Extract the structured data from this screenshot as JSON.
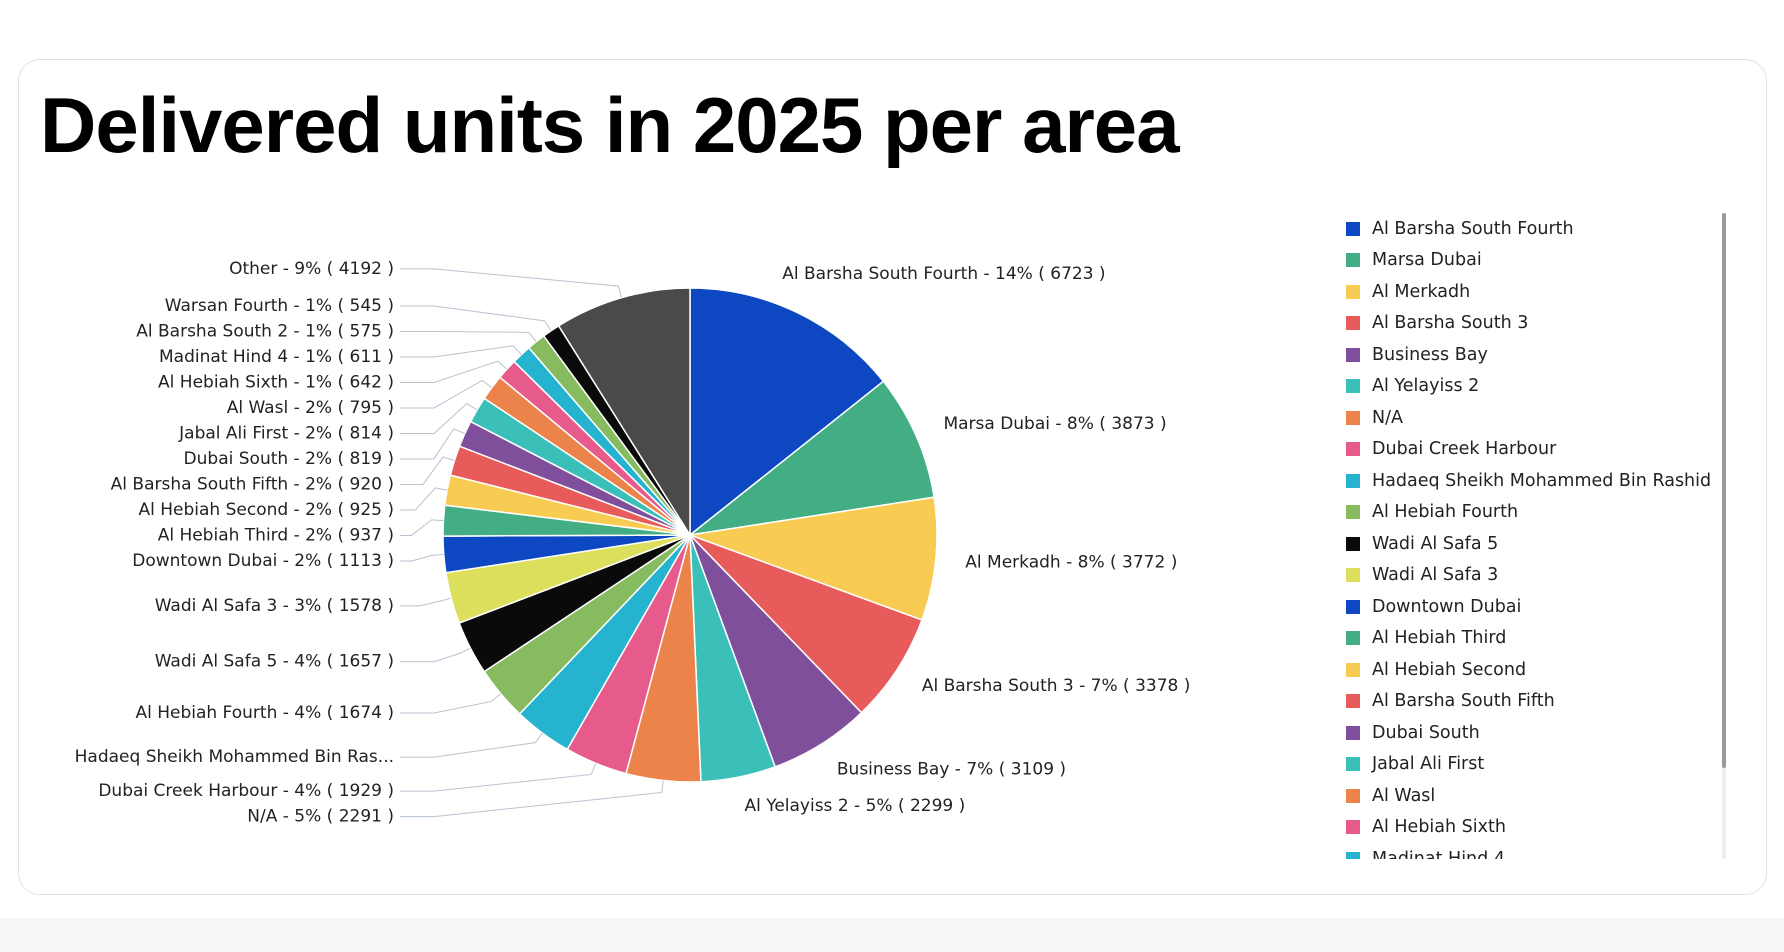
{
  "chart_data": {
    "type": "pie",
    "title": "Delivered units in 2025 per area",
    "categories": [
      "Al Barsha South Fourth",
      "Marsa Dubai",
      "Al Merkadh",
      "Al Barsha South 3",
      "Business Bay",
      "Al Yelayiss 2",
      "N/A",
      "Dubai Creek Harbour",
      "Hadaeq Sheikh Mohammed Bin Rashid",
      "Al Hebiah Fourth",
      "Wadi Al Safa 5",
      "Wadi Al Safa 3",
      "Downtown Dubai",
      "Al Hebiah Third",
      "Al Hebiah Second",
      "Al Barsha South Fifth",
      "Dubai South",
      "Jabal Ali First",
      "Al Wasl",
      "Al Hebiah Sixth",
      "Madinat Hind 4",
      "Al Barsha South 2",
      "Warsan Fourth",
      "Other"
    ],
    "values": [
      6723,
      3873,
      3772,
      3378,
      3109,
      2299,
      2291,
      1929,
      1800,
      1674,
      1657,
      1578,
      1113,
      937,
      925,
      920,
      819,
      814,
      795,
      642,
      611,
      575,
      545,
      4192
    ],
    "value_labels": [
      "Al Barsha South Fourth - 14% ( 6723 )",
      "Marsa Dubai - 8% ( 3873 )",
      "Al Merkadh - 8% ( 3772 )",
      "Al Barsha South 3 - 7% ( 3378 )",
      "Business Bay - 7% ( 3109 )",
      "Al Yelayiss 2 - 5% ( 2299 )",
      "N/A - 5% ( 2291 )",
      "Dubai Creek Harbour - 4% ( 1929 )",
      "Hadaeq Sheikh Mohammed Bin Ras...",
      "Al Hebiah Fourth - 4% ( 1674 )",
      "Wadi Al Safa 5 - 4% ( 1657 )",
      "Wadi Al Safa 3 - 3% ( 1578 )",
      "Downtown Dubai - 2% ( 1113 )",
      "Al Hebiah Third - 2% ( 937 )",
      "Al Hebiah Second - 2% ( 925 )",
      "Al Barsha South Fifth - 2% ( 920 )",
      "Dubai South - 2% ( 819 )",
      "Jabal Ali First - 2% ( 814 )",
      "Al Wasl - 2% ( 795 )",
      "Al Hebiah Sixth - 1% ( 642 )",
      "Madinat Hind 4 - 1% ( 611 )",
      "Al Barsha South 2 - 1% ( 575 )",
      "Warsan Fourth - 1% ( 545 )",
      "Other - 9% ( 4192 )"
    ],
    "colors": [
      "#0d47c1",
      "#43ae84",
      "#f8cb52",
      "#e85b5b",
      "#7f4f9c",
      "#3bbfb9",
      "#ec834a",
      "#e65b8b",
      "#25b3cf",
      "#86bb5f",
      "#0a0a0a",
      "#dbdf5c",
      "#0d47c1",
      "#43ae84",
      "#f8cb52",
      "#e85b5b",
      "#7f4f9c",
      "#3bbfb9",
      "#ec834a",
      "#e65b8b",
      "#25b3cf",
      "#86bb5f",
      "#0a0a0a",
      "#4a4a4a"
    ]
  }
}
